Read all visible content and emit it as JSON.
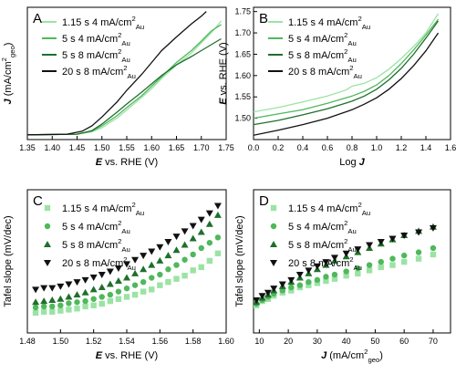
{
  "chart_data": [
    {
      "panel": "A",
      "type": "line",
      "xlabel": "E vs. RHE (V)",
      "ylabel": "J (mA/cm²geo)",
      "xlim": [
        1.35,
        1.75
      ],
      "ylim": [
        -8,
        215
      ],
      "xticks": [
        "1.35",
        "1.40",
        "1.45",
        "1.50",
        "1.55",
        "1.60",
        "1.65",
        "1.70",
        "1.75"
      ],
      "yticks": [],
      "legend_position": "top-left",
      "series": [
        {
          "name": "1.15 s 4 mA/cm²Au",
          "color": "#9be3a4",
          "x": [
            1.35,
            1.45,
            1.48,
            1.5,
            1.53,
            1.55,
            1.58,
            1.6,
            1.62,
            1.65,
            1.68,
            1.7,
            1.72,
            1.74
          ],
          "y": [
            0,
            1,
            5,
            12,
            28,
            42,
            63,
            78,
            95,
            118,
            138,
            155,
            172,
            192
          ]
        },
        {
          "name": "5 s 4 mA/cm²Au",
          "color": "#4fb85c",
          "x": [
            1.35,
            1.45,
            1.48,
            1.5,
            1.53,
            1.55,
            1.58,
            1.6,
            1.62,
            1.65,
            1.68,
            1.7,
            1.72,
            1.74
          ],
          "y": [
            0,
            1,
            6,
            15,
            32,
            46,
            66,
            82,
            98,
            122,
            142,
            158,
            175,
            186
          ]
        },
        {
          "name": "5 s 8 mA/cm²Au",
          "color": "#1f6f2c",
          "x": [
            1.35,
            1.45,
            1.48,
            1.5,
            1.53,
            1.55,
            1.58,
            1.6,
            1.62,
            1.65,
            1.68,
            1.7,
            1.72,
            1.74
          ],
          "y": [
            0,
            1,
            7,
            18,
            38,
            52,
            72,
            86,
            100,
            118,
            132,
            142,
            152,
            162
          ]
        },
        {
          "name": "20 s 8 mA/cm²Au",
          "color": "#111111",
          "x": [
            1.35,
            1.43,
            1.46,
            1.48,
            1.5,
            1.53,
            1.55,
            1.58,
            1.6,
            1.62,
            1.65,
            1.68,
            1.7,
            1.71
          ],
          "y": [
            0,
            1,
            6,
            15,
            30,
            55,
            75,
            102,
            122,
            142,
            165,
            187,
            200,
            208
          ]
        }
      ]
    },
    {
      "panel": "B",
      "type": "line",
      "xlabel": "Log J",
      "ylabel": "E vs. RHE (V)",
      "xlim": [
        0.0,
        1.6
      ],
      "ylim": [
        1.45,
        1.76
      ],
      "xticks": [
        "0.0",
        "0.2",
        "0.4",
        "0.6",
        "0.8",
        "1.0",
        "1.2",
        "1.4",
        "1.6"
      ],
      "yticks": [
        "1.50",
        "1.55",
        "1.60",
        "1.65",
        "1.70",
        "1.75"
      ],
      "legend_position": "top-left",
      "series": [
        {
          "name": "1.15 s 4 mA/cm²Au",
          "color": "#9be3a4",
          "x": [
            0.0,
            0.2,
            0.4,
            0.6,
            0.75,
            0.8,
            0.9,
            1.0,
            1.1,
            1.2,
            1.3,
            1.4,
            1.5
          ],
          "y": [
            1.515,
            1.525,
            1.538,
            1.552,
            1.566,
            1.575,
            1.582,
            1.595,
            1.615,
            1.64,
            1.668,
            1.7,
            1.745
          ]
        },
        {
          "name": "5 s 4 mA/cm²Au",
          "color": "#4fb85c",
          "x": [
            0.0,
            0.2,
            0.4,
            0.6,
            0.8,
            0.9,
            1.0,
            1.1,
            1.2,
            1.3,
            1.4,
            1.5
          ],
          "y": [
            1.5,
            1.51,
            1.52,
            1.535,
            1.552,
            1.563,
            1.578,
            1.6,
            1.628,
            1.66,
            1.695,
            1.732
          ]
        },
        {
          "name": "5 s 8 mA/cm²Au",
          "color": "#1f6f2c",
          "x": [
            0.0,
            0.2,
            0.4,
            0.6,
            0.8,
            0.9,
            1.0,
            1.1,
            1.2,
            1.3,
            1.4,
            1.5
          ],
          "y": [
            1.485,
            1.495,
            1.508,
            1.522,
            1.54,
            1.552,
            1.568,
            1.59,
            1.617,
            1.65,
            1.688,
            1.728
          ]
        },
        {
          "name": "20 s 8 mA/cm²Au",
          "color": "#111111",
          "x": [
            0.0,
            0.2,
            0.4,
            0.6,
            0.8,
            0.9,
            1.0,
            1.1,
            1.2,
            1.3,
            1.4,
            1.5
          ],
          "y": [
            1.46,
            1.472,
            1.485,
            1.5,
            1.52,
            1.533,
            1.548,
            1.568,
            1.593,
            1.623,
            1.658,
            1.7
          ]
        }
      ]
    },
    {
      "panel": "C",
      "type": "scatter",
      "xlabel": "E vs. RHE (V)",
      "ylabel": "Tafel slope (mV/dec)",
      "xlim": [
        1.48,
        1.6
      ],
      "ylim": [
        0,
        270
      ],
      "xticks": [
        "1.48",
        "1.50",
        "1.52",
        "1.54",
        "1.56",
        "1.58",
        "1.60"
      ],
      "yticks": [],
      "legend_position": "top-left",
      "series": [
        {
          "name": "1.15 s 4 mA/cm²Au",
          "color": "#9be3a4",
          "marker": "square",
          "x": [
            1.485,
            1.49,
            1.495,
            1.5,
            1.505,
            1.51,
            1.515,
            1.52,
            1.525,
            1.53,
            1.535,
            1.54,
            1.545,
            1.55,
            1.555,
            1.56,
            1.565,
            1.57,
            1.575,
            1.58,
            1.585,
            1.59,
            1.595
          ],
          "y": [
            38,
            40,
            40,
            42,
            44,
            46,
            50,
            52,
            55,
            60,
            64,
            68,
            72,
            78,
            82,
            90,
            96,
            102,
            108,
            118,
            124,
            136,
            150
          ]
        },
        {
          "name": "5 s 4 mA/cm²Au",
          "color": "#4fb85c",
          "marker": "circle",
          "x": [
            1.485,
            1.49,
            1.495,
            1.5,
            1.505,
            1.51,
            1.515,
            1.52,
            1.525,
            1.53,
            1.535,
            1.54,
            1.545,
            1.55,
            1.555,
            1.56,
            1.565,
            1.57,
            1.575,
            1.58,
            1.585,
            1.59,
            1.595
          ],
          "y": [
            48,
            50,
            50,
            52,
            56,
            58,
            60,
            64,
            68,
            72,
            78,
            84,
            90,
            96,
            104,
            110,
            120,
            128,
            138,
            148,
            160,
            170,
            180
          ]
        },
        {
          "name": "5 s 8 mA/cm²Au",
          "color": "#1f6f2c",
          "marker": "triangle-up",
          "x": [
            1.485,
            1.49,
            1.495,
            1.5,
            1.505,
            1.51,
            1.515,
            1.52,
            1.525,
            1.53,
            1.535,
            1.54,
            1.545,
            1.55,
            1.555,
            1.56,
            1.565,
            1.57,
            1.575,
            1.58,
            1.585,
            1.59,
            1.595
          ],
          "y": [
            58,
            60,
            62,
            64,
            68,
            72,
            76,
            82,
            86,
            92,
            98,
            104,
            112,
            120,
            128,
            136,
            146,
            156,
            166,
            178,
            190,
            205,
            222
          ]
        },
        {
          "name": "20 s 8 mA/cm²Au",
          "color": "#111111",
          "marker": "triangle-down",
          "x": [
            1.485,
            1.49,
            1.495,
            1.5,
            1.505,
            1.51,
            1.515,
            1.52,
            1.525,
            1.53,
            1.535,
            1.54,
            1.545,
            1.55,
            1.555,
            1.56,
            1.565,
            1.57,
            1.575,
            1.58,
            1.585,
            1.59,
            1.595
          ],
          "y": [
            82,
            85,
            85,
            88,
            92,
            96,
            100,
            105,
            110,
            116,
            122,
            130,
            138,
            146,
            154,
            162,
            172,
            182,
            192,
            202,
            214,
            226,
            240
          ]
        }
      ]
    },
    {
      "panel": "D",
      "type": "scatter",
      "xlabel": "J (mA/cm²geo)",
      "ylabel": "Tafel slope (mV/dec)",
      "xlim": [
        8,
        76
      ],
      "ylim": [
        0,
        270
      ],
      "xticks": [
        "10",
        "20",
        "30",
        "40",
        "50",
        "60",
        "70"
      ],
      "yticks": [],
      "legend_position": "top-left",
      "series": [
        {
          "name": "1.15 s 4 mA/cm²Au",
          "color": "#9be3a4",
          "marker": "square",
          "x": [
            9,
            11,
            13,
            15,
            18,
            21,
            24,
            27,
            30,
            33,
            36,
            40,
            44,
            48,
            52,
            56,
            60,
            65,
            70
          ],
          "y": [
            52,
            60,
            64,
            70,
            76,
            80,
            86,
            90,
            94,
            98,
            102,
            108,
            112,
            118,
            124,
            128,
            134,
            140,
            148
          ]
        },
        {
          "name": "5 s 4 mA/cm²Au",
          "color": "#4fb85c",
          "marker": "circle",
          "x": [
            9,
            11,
            13,
            15,
            18,
            21,
            24,
            27,
            30,
            33,
            36,
            40,
            44,
            48,
            52,
            56,
            60,
            65,
            70
          ],
          "y": [
            55,
            62,
            68,
            74,
            80,
            86,
            90,
            96,
            100,
            106,
            110,
            116,
            122,
            128,
            134,
            140,
            146,
            152,
            160
          ]
        },
        {
          "name": "5 s 8 mA/cm²Au",
          "color": "#1f6f2c",
          "marker": "triangle-up",
          "x": [
            9,
            11,
            13,
            15,
            18,
            21,
            24,
            27,
            30,
            33,
            36,
            40,
            44,
            48,
            52,
            56,
            60,
            65,
            70
          ],
          "y": [
            58,
            66,
            72,
            80,
            88,
            96,
            104,
            112,
            120,
            128,
            136,
            144,
            152,
            160,
            168,
            176,
            184,
            192,
            200
          ]
        },
        {
          "name": "20 s 8 mA/cm²Au",
          "color": "#111111",
          "marker": "triangle-down",
          "x": [
            9,
            11,
            13,
            15,
            18,
            21,
            24,
            27,
            30,
            33,
            36,
            40,
            44,
            48,
            52,
            56,
            60,
            65,
            70
          ],
          "y": [
            62,
            70,
            76,
            84,
            92,
            100,
            110,
            118,
            126,
            134,
            142,
            150,
            158,
            166,
            172,
            178,
            184,
            190,
            198
          ]
        }
      ]
    }
  ]
}
